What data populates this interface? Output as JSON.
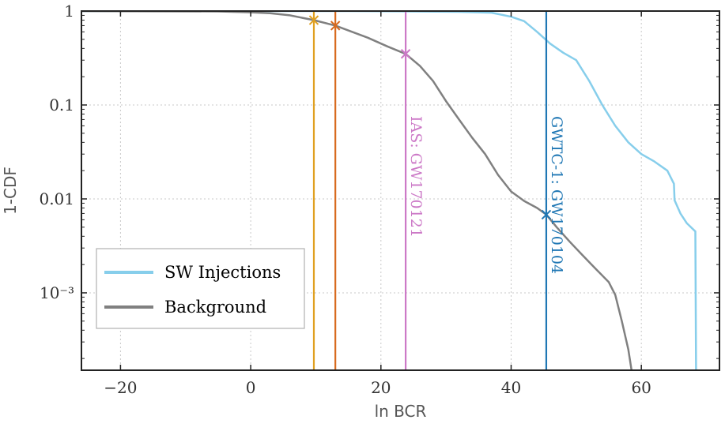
{
  "chart_data": {
    "type": "line",
    "xlabel": "ln BCR",
    "ylabel": "1-CDF",
    "xlim": [
      -26,
      72
    ],
    "ylim": [
      0.00015,
      1.0
    ],
    "yscale": "log",
    "grid": true,
    "x_ticks": [
      {
        "value": -20,
        "label": "−20"
      },
      {
        "value": 0,
        "label": "0"
      },
      {
        "value": 20,
        "label": "20"
      },
      {
        "value": 40,
        "label": "40"
      },
      {
        "value": 60,
        "label": "60"
      }
    ],
    "y_ticks": [
      {
        "value": 1,
        "label": "1"
      },
      {
        "value": 0.1,
        "label": "0.1"
      },
      {
        "value": 0.01,
        "label": "0.01"
      },
      {
        "value": 0.001,
        "label": "10⁻³"
      }
    ],
    "legend": {
      "placement": "lower-left",
      "entries": [
        {
          "label": "SW Injections",
          "color": "#87ceeb"
        },
        {
          "label": "Background",
          "color": "#808080"
        }
      ]
    },
    "series": [
      {
        "name": "SW Injections",
        "color": "#87ceeb",
        "points": [
          [
            -26,
            1.0
          ],
          [
            15,
            1.0
          ],
          [
            25,
            0.99
          ],
          [
            32,
            0.98
          ],
          [
            37,
            0.96
          ],
          [
            40,
            0.87
          ],
          [
            42,
            0.78
          ],
          [
            44,
            0.6
          ],
          [
            46,
            0.45
          ],
          [
            48,
            0.36
          ],
          [
            50,
            0.3
          ],
          [
            52,
            0.18
          ],
          [
            54,
            0.1
          ],
          [
            56,
            0.06
          ],
          [
            58,
            0.04
          ],
          [
            60,
            0.03
          ],
          [
            62,
            0.025
          ],
          [
            64,
            0.02
          ],
          [
            65,
            0.0145
          ],
          [
            65.1,
            0.0097
          ],
          [
            66,
            0.007
          ],
          [
            67,
            0.0055
          ],
          [
            68.3,
            0.0045
          ],
          [
            68.4,
            0.00015
          ]
        ]
      },
      {
        "name": "Background",
        "color": "#808080",
        "points": [
          [
            -26,
            1.0
          ],
          [
            -5,
            0.99
          ],
          [
            0,
            0.97
          ],
          [
            3,
            0.95
          ],
          [
            6,
            0.9
          ],
          [
            9.7,
            0.8
          ],
          [
            13,
            0.7
          ],
          [
            18,
            0.52
          ],
          [
            21,
            0.42
          ],
          [
            23.8,
            0.35
          ],
          [
            26,
            0.26
          ],
          [
            28,
            0.18
          ],
          [
            30,
            0.11
          ],
          [
            32,
            0.07
          ],
          [
            34,
            0.045
          ],
          [
            36,
            0.03
          ],
          [
            38,
            0.018
          ],
          [
            40,
            0.012
          ],
          [
            42,
            0.0095
          ],
          [
            44,
            0.008
          ],
          [
            45.4,
            0.0068
          ],
          [
            47,
            0.005
          ],
          [
            49,
            0.0035
          ],
          [
            51,
            0.0025
          ],
          [
            53,
            0.0018
          ],
          [
            55,
            0.0013
          ],
          [
            56,
            0.00095
          ],
          [
            57,
            0.0005
          ],
          [
            58,
            0.00025
          ],
          [
            58.5,
            0.00015
          ]
        ]
      }
    ],
    "events": [
      {
        "label": "",
        "x": 9.7,
        "y": 0.8,
        "color": "#e0a020"
      },
      {
        "label": "",
        "x": 13,
        "y": 0.7,
        "color": "#d86a1e"
      },
      {
        "label": "IAS: GW170121",
        "x": 23.8,
        "y": 0.35,
        "color": "#cc79c7"
      },
      {
        "label": "GWTC-1: GW170104",
        "x": 45.4,
        "y": 0.0068,
        "color": "#1f77b4"
      }
    ]
  }
}
